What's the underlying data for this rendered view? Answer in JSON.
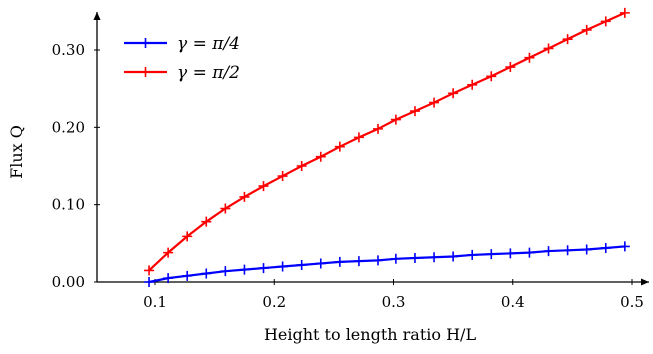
{
  "chart_data": {
    "type": "line",
    "title": "",
    "xlabel": "Height to length ratio H/L",
    "ylabel": "Flux Q",
    "xlim": [
      0.05,
      0.5
    ],
    "ylim": [
      0.0,
      0.35
    ],
    "xticks": [
      0.1,
      0.2,
      0.3,
      0.4,
      0.5
    ],
    "xtick_labels": [
      "0.1",
      "0.2",
      "0.3",
      "0.4",
      "0.5"
    ],
    "yticks": [
      0.0,
      0.1,
      0.2,
      0.3
    ],
    "ytick_labels": [
      "0.00",
      "0.10",
      "0.20",
      "0.30"
    ],
    "grid": false,
    "legend_position": "top-left",
    "marker": "plus",
    "x": [
      0.095,
      0.111,
      0.127,
      0.143,
      0.159,
      0.175,
      0.191,
      0.207,
      0.223,
      0.239,
      0.255,
      0.271,
      0.287,
      0.302,
      0.318,
      0.334,
      0.35,
      0.366,
      0.382,
      0.398,
      0.414,
      0.43,
      0.446,
      0.462,
      0.478,
      0.494
    ],
    "series": [
      {
        "name": "γ = π/4",
        "color": "#0000ff",
        "values": [
          0.0,
          0.005,
          0.008,
          0.011,
          0.014,
          0.016,
          0.018,
          0.02,
          0.022,
          0.024,
          0.026,
          0.027,
          0.028,
          0.03,
          0.031,
          0.032,
          0.033,
          0.035,
          0.036,
          0.037,
          0.038,
          0.04,
          0.041,
          0.042,
          0.044,
          0.046
        ]
      },
      {
        "name": "γ = π/2",
        "color": "#ff0000",
        "values": [
          0.015,
          0.038,
          0.059,
          0.078,
          0.095,
          0.11,
          0.124,
          0.137,
          0.15,
          0.162,
          0.175,
          0.187,
          0.198,
          0.21,
          0.221,
          0.232,
          0.244,
          0.255,
          0.266,
          0.278,
          0.29,
          0.302,
          0.314,
          0.326,
          0.337,
          0.348
        ]
      }
    ]
  }
}
